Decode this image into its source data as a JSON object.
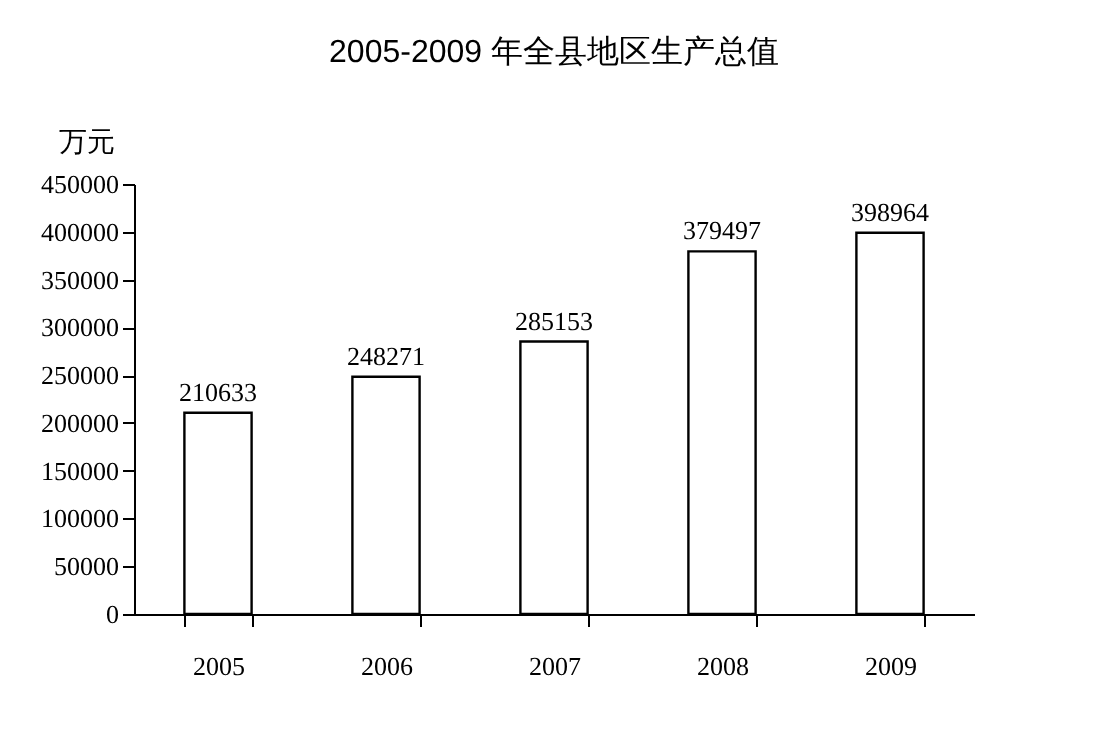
{
  "chart_data": {
    "type": "bar",
    "title": "2005-2009 年全县地区生产总值",
    "ylabel": "万元",
    "categories": [
      "2005",
      "2006",
      "2007",
      "2008",
      "2009"
    ],
    "values": [
      210633,
      248271,
      285153,
      379497,
      398964
    ],
    "color": "#ffffff",
    "ylim": [
      0,
      450000
    ],
    "yticks": [
      0,
      50000,
      100000,
      150000,
      200000,
      250000,
      300000,
      350000,
      400000,
      450000
    ],
    "data_labels": true,
    "grid": false
  }
}
